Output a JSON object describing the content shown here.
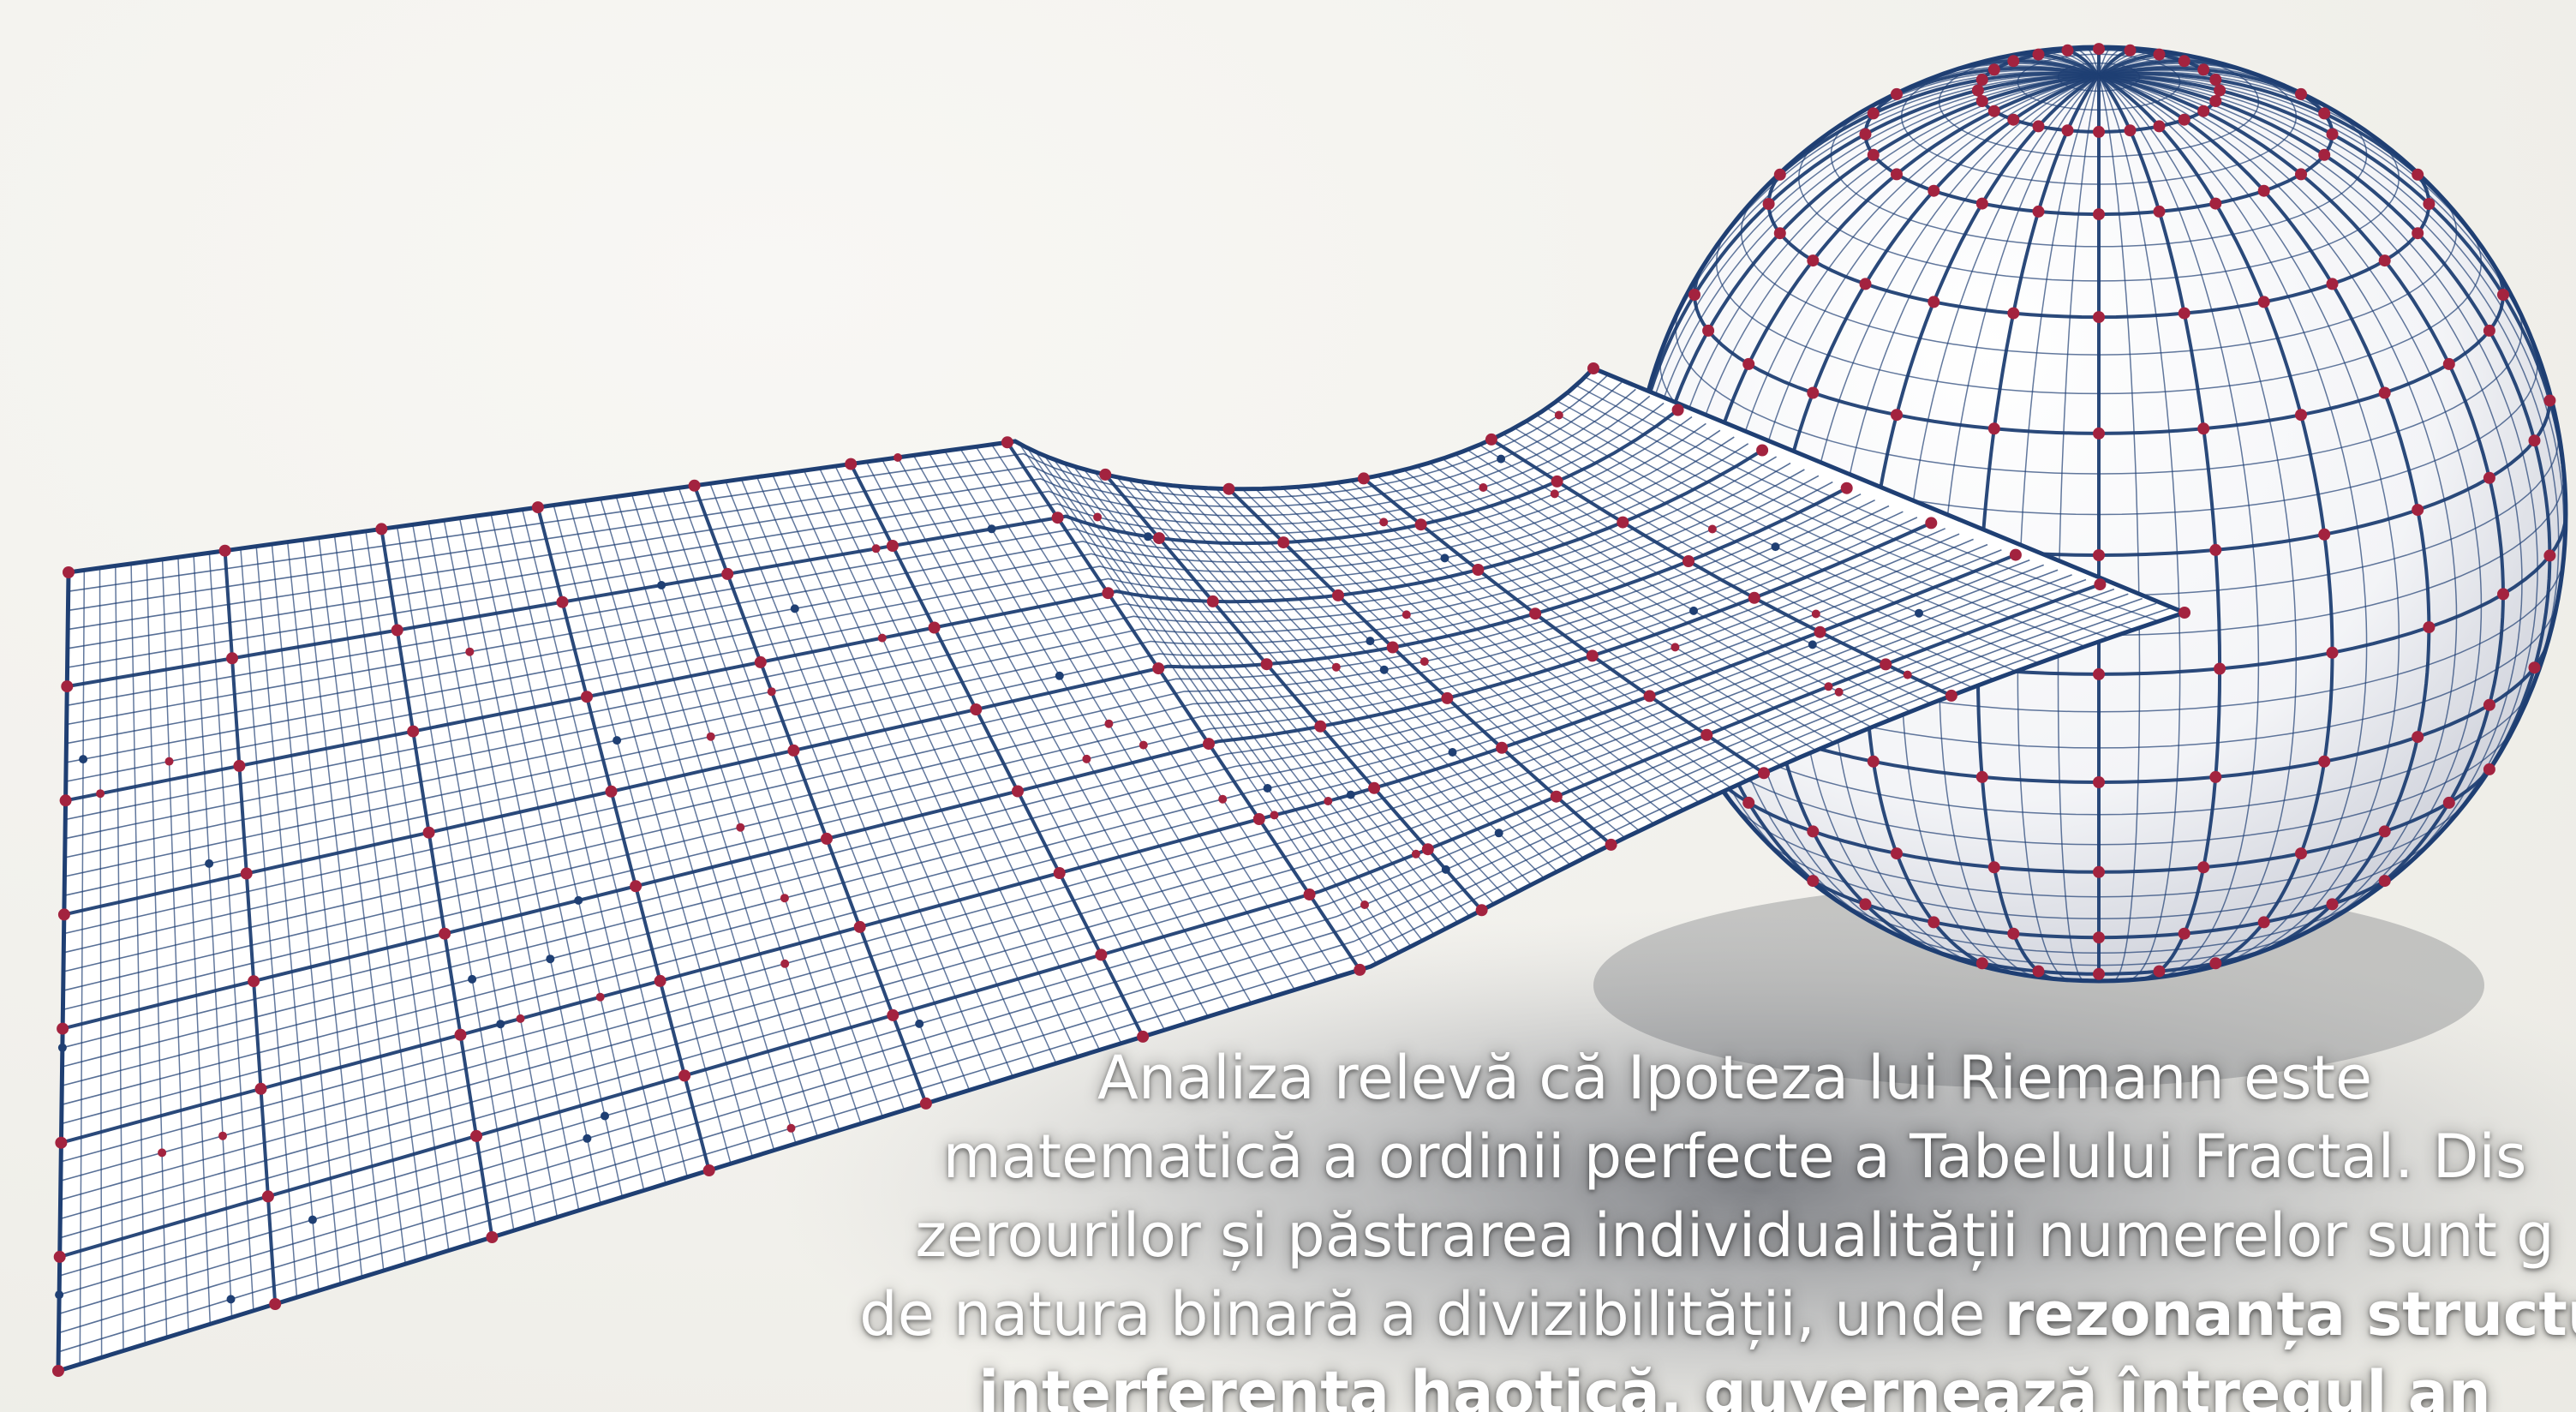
{
  "palette": {
    "background": "#f2f1ec",
    "grid_line": "#1f3f73",
    "node_red": "#a3233f",
    "node_blue": "#1f3f73",
    "shadow": "#7d8088",
    "caption_text": "#ffffff"
  },
  "caption": {
    "line1": "Analiza relevă că Ipoteza lui Riemann este",
    "line2": "matematică a ordinii perfecte a Tabelului Fractal. Dis",
    "line3": "zerourilor și păstrarea individualității numerelor sunt g",
    "line4_plain": "de natura binară a divizibilității, unde ",
    "line4_bold": "rezonanța structu",
    "line5_bold": "interferența haotică, guvernează întregul an"
  },
  "illustration": {
    "subject": "wireframe grid sheet bending into a wireframe sphere",
    "icons": [
      "grid-sheet",
      "wireframe-sphere",
      "red-node-dots"
    ]
  }
}
